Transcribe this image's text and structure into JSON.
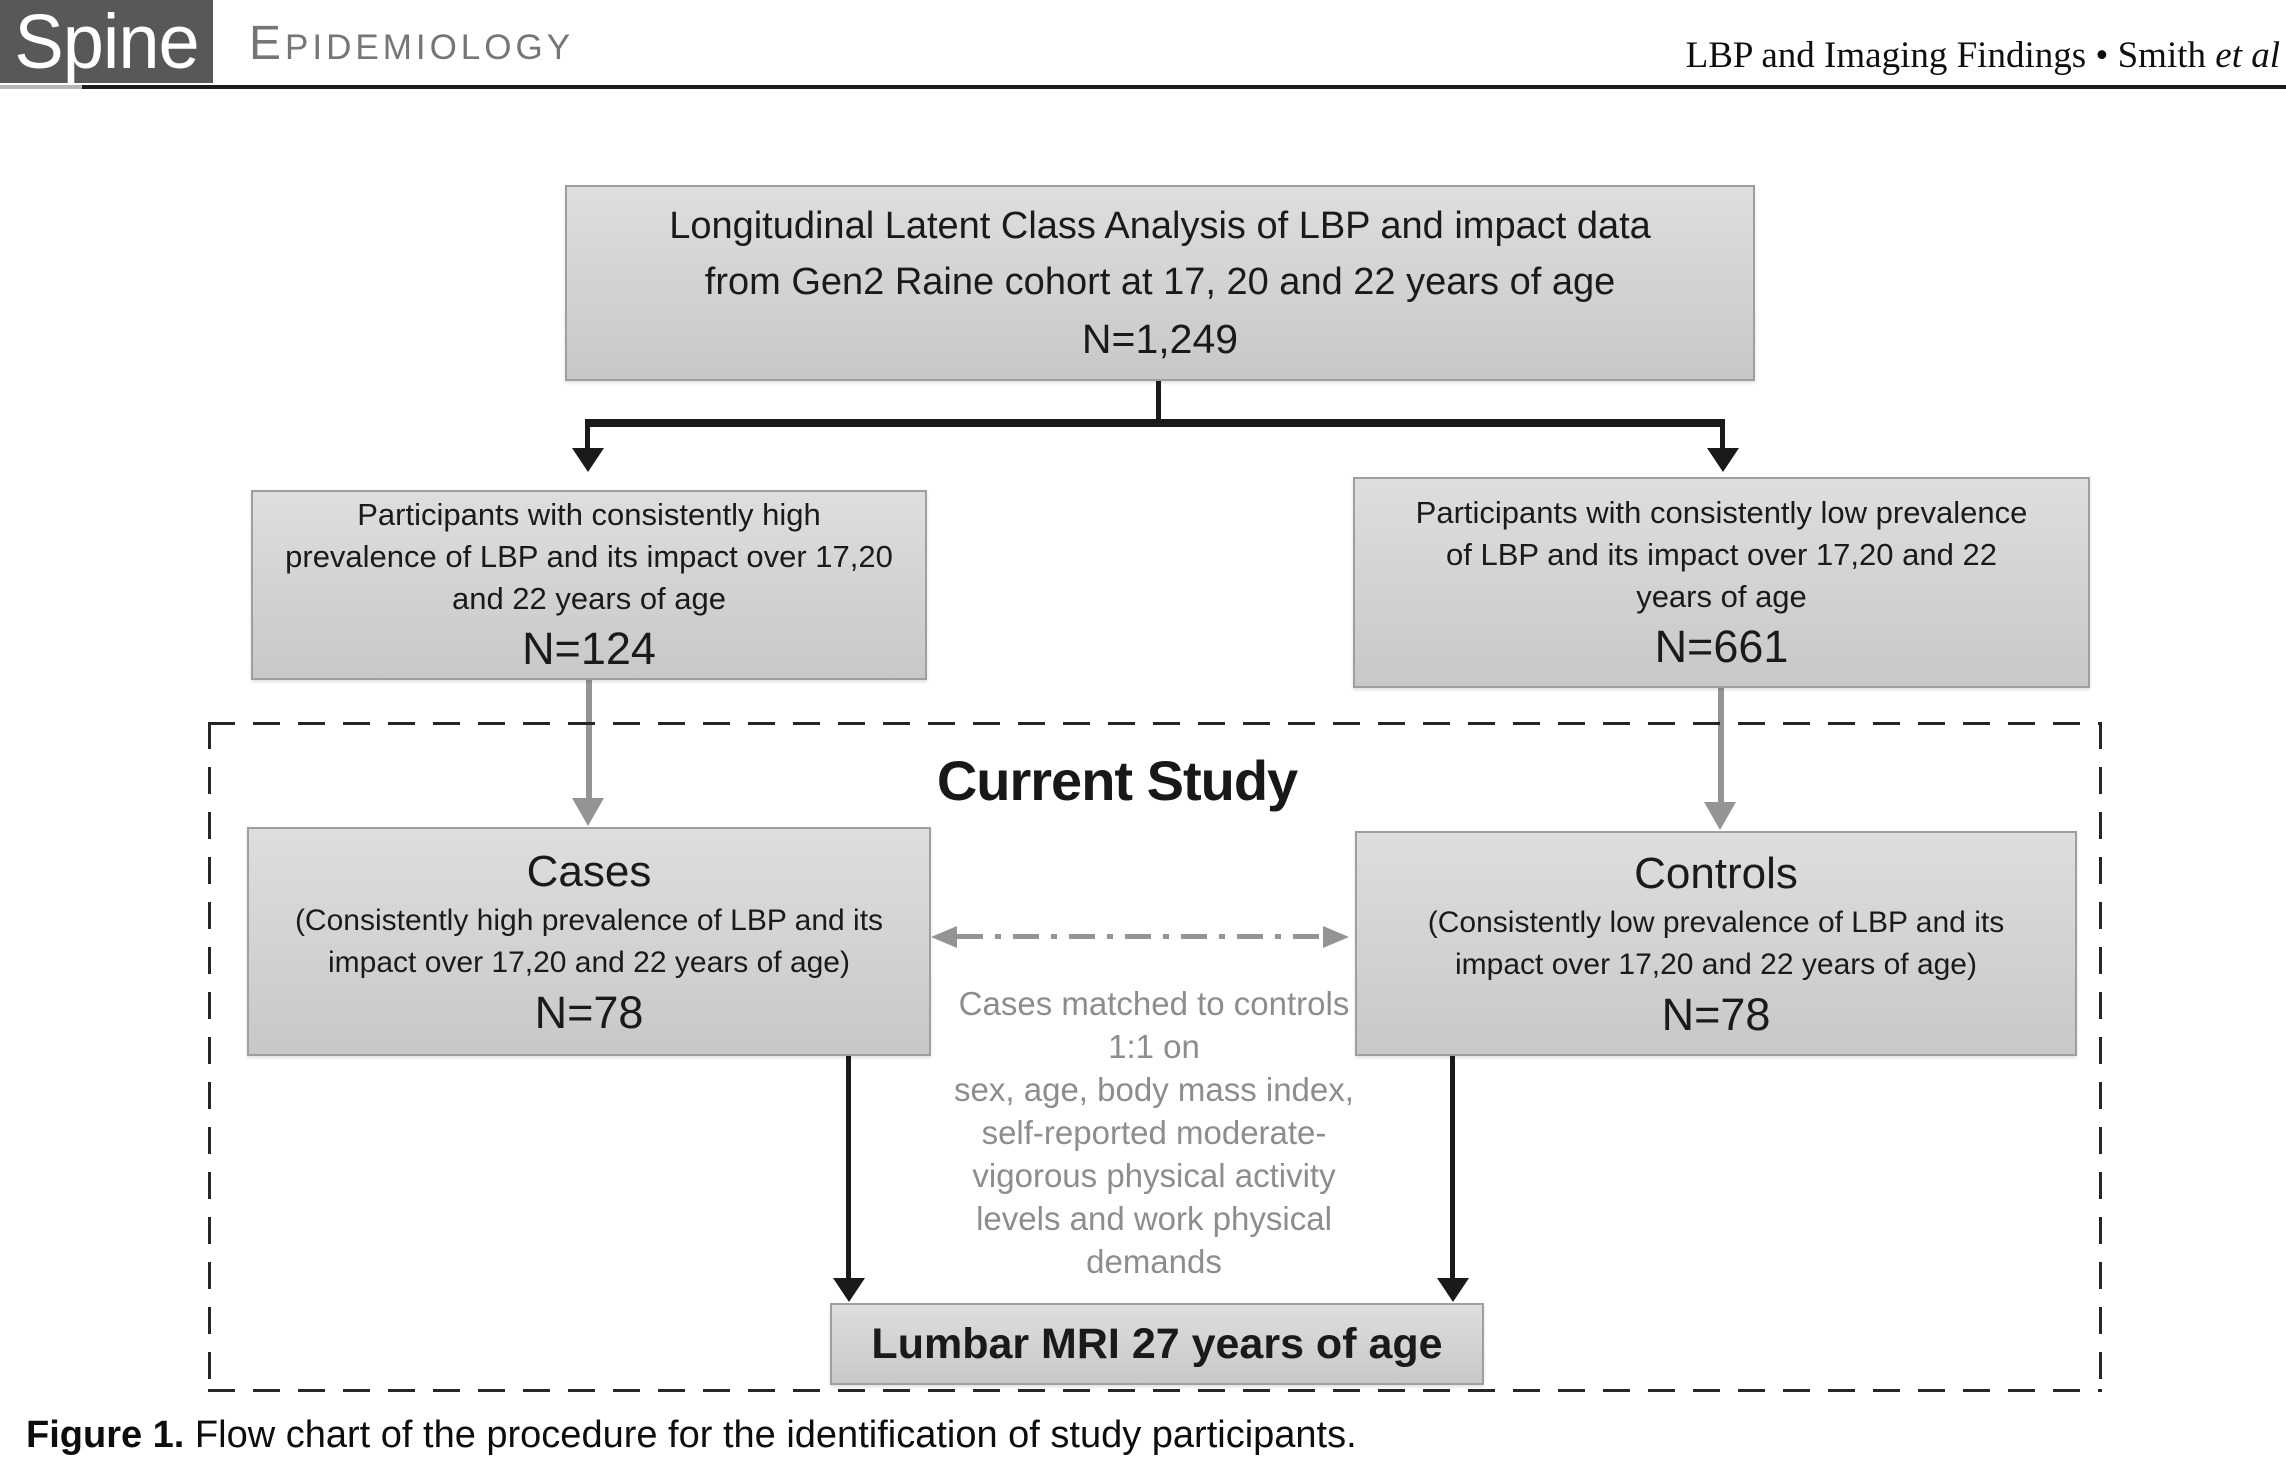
{
  "header": {
    "logo_text": "Spine",
    "section_initial": "E",
    "section_rest": "PIDEMIOLOGY",
    "running_head_main": "LBP and Imaging Findings • Smith ",
    "running_head_italic": "et al"
  },
  "flow": {
    "top_box": {
      "line1": "Longitudinal Latent Class Analysis of LBP and impact data",
      "line2": "from Gen2 Raine cohort at 17, 20 and 22 years of age",
      "n": "N=1,249"
    },
    "high_box": {
      "line1": "Participants with consistently high",
      "line2": "prevalence of LBP and its impact over 17,20",
      "line3": "and 22 years of age",
      "n": "N=124"
    },
    "low_box": {
      "line1": "Participants with consistently low prevalence",
      "line2": "of LBP and its impact over 17,20 and 22",
      "line3": "years of age",
      "n": "N=661"
    },
    "current_study_title": "Current Study",
    "cases_box": {
      "title": "Cases",
      "line1": "(Consistently high prevalence of LBP and its",
      "line2": "impact over 17,20 and 22 years of age)",
      "n": "N=78"
    },
    "controls_box": {
      "title": "Controls",
      "line1": "(Consistently low prevalence of LBP and its",
      "line2": "impact over 17,20 and 22 years of age)",
      "n": "N=78"
    },
    "matched_note": {
      "lines": [
        "Cases matched to controls",
        "1:1 on",
        "sex, age, body mass index,",
        "self-reported moderate-",
        "vigorous physical activity",
        "levels and work physical",
        "demands"
      ]
    },
    "mri_box": "Lumbar MRI 27 years of age"
  },
  "caption": {
    "label": "Figure 1.",
    "text": " Flow chart of the procedure for the identification of study participants."
  },
  "colors": {
    "logo-bg": "#58585a",
    "box-fill-top": "#dedede",
    "box-fill-bottom": "#c8c8c8",
    "box-border": "#9f9f9f",
    "ink": "#1a1a1a",
    "muted": "#8d8d8d",
    "gray-arrow": "#949494",
    "rule-gray": "#b5b5b5",
    "section-label": "#767676",
    "dash-border": "#262626"
  }
}
